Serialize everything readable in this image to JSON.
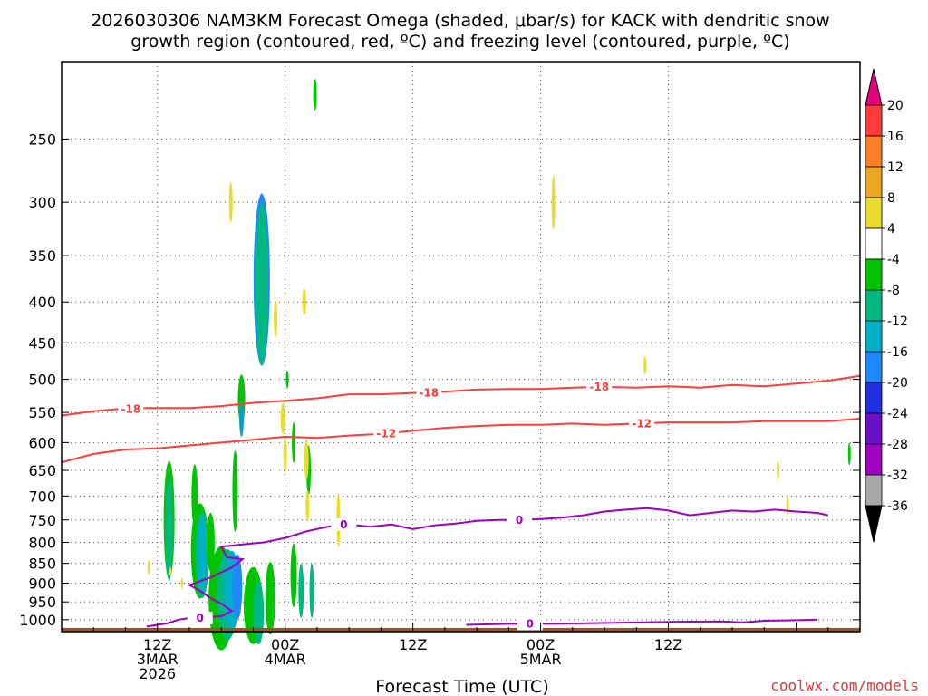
{
  "chart_data": {
    "type": "heatmap",
    "title_line1": "2026030306 NAM3KM Forecast Omega (shaded, μbar/s) for KACK with dendritic snow",
    "title_line2": "growth region (contoured, red, ºC) and freezing level (contoured, purple, ºC)",
    "xlabel": "Forecast Time (UTC)",
    "credit": "coolwx.com/models",
    "x_range_hours": [
      0,
      75
    ],
    "y_scale": "log",
    "y_range_hPa": [
      200,
      1035
    ],
    "pressure_ticks": [
      250,
      300,
      350,
      400,
      450,
      500,
      550,
      600,
      650,
      700,
      750,
      800,
      850,
      900,
      950,
      1000
    ],
    "time_ticks": [
      {
        "hour": 9,
        "lines": [
          "12Z",
          "3MAR",
          "2026"
        ]
      },
      {
        "hour": 21,
        "lines": [
          "00Z",
          "4MAR"
        ]
      },
      {
        "hour": 33,
        "lines": [
          "12Z"
        ]
      },
      {
        "hour": 45,
        "lines": [
          "00Z",
          "5MAR"
        ]
      },
      {
        "hour": 57,
        "lines": [
          "12Z"
        ]
      }
    ],
    "colorbar": {
      "labels": [
        "20",
        "16",
        "12",
        "8",
        "4",
        "-4",
        "-8",
        "-12",
        "-16",
        "-20",
        "-24",
        "-28",
        "-32",
        "-36"
      ],
      "colors": [
        "#e6007e",
        "#ff3b3b",
        "#ff7f27",
        "#e8a822",
        "#e8dc2e",
        "#ffffff",
        "#00c400",
        "#00b880",
        "#00b0c8",
        "#1e88ff",
        "#2030e0",
        "#6a10c8",
        "#a000c0",
        "#a8a8a8",
        "#000000"
      ]
    },
    "contours": [
      {
        "name": "-18",
        "color": "#ff3b3b",
        "label_hours": [
          6.5,
          34.5,
          50.5
        ],
        "points": [
          [
            0,
            555
          ],
          [
            3,
            548
          ],
          [
            5,
            545
          ],
          [
            8,
            543
          ],
          [
            12,
            543
          ],
          [
            15,
            540
          ],
          [
            18,
            535
          ],
          [
            21,
            532
          ],
          [
            24,
            528
          ],
          [
            27,
            522
          ],
          [
            30,
            522
          ],
          [
            33,
            520
          ],
          [
            36,
            518
          ],
          [
            39,
            515
          ],
          [
            42,
            514
          ],
          [
            45,
            514
          ],
          [
            48,
            512
          ],
          [
            51,
            511
          ],
          [
            54,
            512
          ],
          [
            57,
            510
          ],
          [
            60,
            512
          ],
          [
            63,
            508
          ],
          [
            66,
            510
          ],
          [
            69,
            506
          ],
          [
            72,
            502
          ],
          [
            75,
            495
          ]
        ]
      },
      {
        "name": "-12",
        "color": "#ff3b3b",
        "label_hours": [
          30.5,
          54.5
        ],
        "points": [
          [
            0,
            635
          ],
          [
            3,
            620
          ],
          [
            6,
            612
          ],
          [
            9,
            610
          ],
          [
            12,
            605
          ],
          [
            15,
            600
          ],
          [
            18,
            595
          ],
          [
            21,
            590
          ],
          [
            24,
            592
          ],
          [
            27,
            588
          ],
          [
            30,
            585
          ],
          [
            33,
            580
          ],
          [
            36,
            575
          ],
          [
            39,
            572
          ],
          [
            42,
            570
          ],
          [
            45,
            570
          ],
          [
            48,
            568
          ],
          [
            51,
            570
          ],
          [
            54,
            568
          ],
          [
            57,
            566
          ],
          [
            60,
            566
          ],
          [
            63,
            566
          ],
          [
            66,
            564
          ],
          [
            69,
            564
          ],
          [
            72,
            564
          ],
          [
            75,
            560
          ]
        ]
      },
      {
        "name": "0",
        "color": "#a000c0",
        "label_hours": [
          13,
          26.5,
          43
        ],
        "points": [
          [
            8,
            1020
          ],
          [
            10,
            1010
          ],
          [
            11,
            1000
          ],
          [
            12,
            995
          ],
          [
            13,
            995
          ],
          [
            15,
            990
          ],
          [
            16,
            975
          ],
          [
            15,
            955
          ],
          [
            14,
            940
          ],
          [
            13,
            920
          ],
          [
            12,
            905
          ],
          [
            14,
            885
          ],
          [
            16,
            860
          ],
          [
            17,
            840
          ],
          [
            15.5,
            835
          ],
          [
            15,
            810
          ],
          [
            17,
            805
          ],
          [
            19,
            800
          ],
          [
            21,
            790
          ],
          [
            23,
            775
          ],
          [
            25,
            765
          ],
          [
            27,
            760
          ],
          [
            29,
            765
          ],
          [
            31,
            760
          ],
          [
            33,
            770
          ],
          [
            35,
            762
          ],
          [
            37,
            758
          ],
          [
            39,
            752
          ],
          [
            41,
            750
          ],
          [
            43,
            750
          ],
          [
            45,
            748
          ],
          [
            47,
            745
          ],
          [
            49,
            740
          ],
          [
            51,
            732
          ],
          [
            53,
            728
          ],
          [
            55,
            725
          ],
          [
            57,
            730
          ],
          [
            59,
            740
          ],
          [
            61,
            735
          ],
          [
            63,
            730
          ],
          [
            65,
            732
          ],
          [
            67,
            728
          ],
          [
            69,
            732
          ],
          [
            71,
            735
          ],
          [
            72,
            740
          ]
        ]
      },
      {
        "name": "0",
        "color": "#a000c0",
        "label_hours": [
          44
        ],
        "points": [
          [
            38,
            1015
          ],
          [
            42,
            1012
          ],
          [
            46,
            1012
          ],
          [
            50,
            1010
          ],
          [
            54,
            1008
          ],
          [
            58,
            1006
          ],
          [
            62,
            1005
          ],
          [
            64,
            1008
          ],
          [
            66,
            1003
          ],
          [
            68,
            1002
          ],
          [
            71,
            1000
          ]
        ]
      }
    ]
  }
}
